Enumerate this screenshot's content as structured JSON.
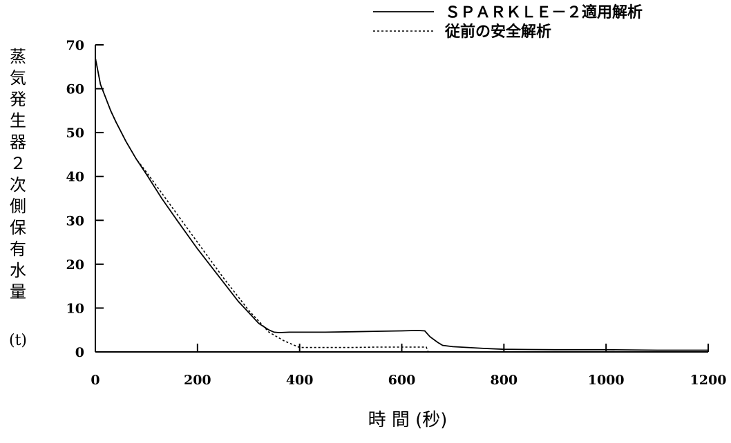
{
  "chart_data": {
    "type": "line",
    "xlabel": "時 間 (秒)",
    "ylabel": "蒸気発生器２次側保有水量",
    "ylabel_unit": "(t)",
    "xlim": [
      0,
      1200
    ],
    "ylim": [
      0,
      70
    ],
    "xticks": [
      "0",
      "200",
      "400",
      "600",
      "800",
      "1000",
      "1200"
    ],
    "yticks": [
      "0",
      "10",
      "20",
      "30",
      "40",
      "50",
      "60",
      "70"
    ],
    "grid": false,
    "legend_position": "top-right",
    "series": [
      {
        "name": "ＳＰＡＲＫＬＥ－２適用解析",
        "style": "solid",
        "color": "#000000",
        "x": [
          0,
          5,
          10,
          20,
          30,
          40,
          60,
          80,
          100,
          130,
          160,
          200,
          240,
          280,
          300,
          320,
          340,
          350,
          360,
          380,
          400,
          450,
          500,
          550,
          600,
          630,
          645,
          655,
          670,
          680,
          700,
          730,
          760,
          800,
          900,
          1000,
          1100,
          1200
        ],
        "y": [
          67,
          64,
          61,
          58,
          55,
          52.5,
          48,
          44,
          40.5,
          35,
          30,
          23.5,
          17.5,
          11.5,
          9,
          6.5,
          5,
          4.5,
          4.4,
          4.5,
          4.5,
          4.5,
          4.6,
          4.7,
          4.8,
          4.9,
          4.8,
          3.5,
          2.2,
          1.5,
          1.2,
          1.0,
          0.8,
          0.6,
          0.5,
          0.5,
          0.4,
          0.4
        ]
      },
      {
        "name": "従前の安全解析",
        "style": "dotted",
        "color": "#000000",
        "x": [
          0,
          5,
          10,
          20,
          30,
          40,
          60,
          80,
          100,
          150,
          200,
          250,
          300,
          340,
          370,
          390,
          400,
          450,
          500,
          550,
          600,
          640,
          648,
          652,
          1200
        ],
        "y": [
          67,
          64,
          61,
          58,
          55,
          52.5,
          48,
          44,
          41,
          33,
          25,
          17,
          9.5,
          4.5,
          2.5,
          1.5,
          1.0,
          1.0,
          1.0,
          1.1,
          1.1,
          1.1,
          1.1,
          0,
          0
        ]
      }
    ]
  }
}
